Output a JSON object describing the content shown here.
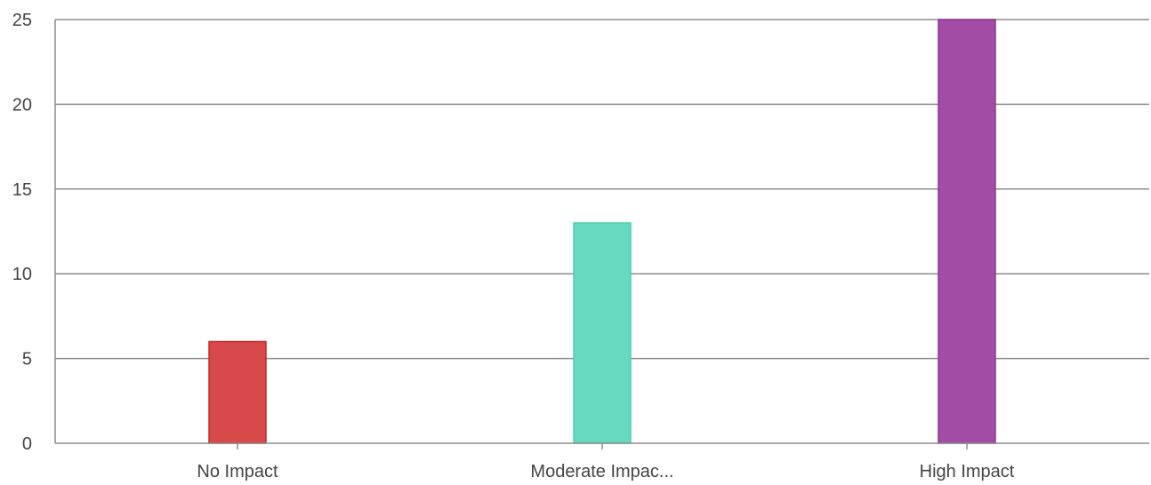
{
  "chart_data": {
    "type": "bar",
    "categories": [
      "No Impact",
      "Moderate Impac...",
      "High Impact"
    ],
    "values": [
      6,
      13,
      25
    ],
    "colors": [
      "#d84a4a",
      "#66d9c0",
      "#a24ca6"
    ],
    "border_colors": [
      "#c62a2a",
      "#4fcdb0",
      "#8e3594"
    ],
    "ylim": [
      0,
      25
    ],
    "yticks": [
      0,
      5,
      10,
      15,
      20,
      25
    ],
    "ytick_labels": [
      "0",
      "5",
      "10",
      "15",
      "20",
      "25"
    ],
    "grid": true,
    "title": "",
    "xlabel": "",
    "ylabel": ""
  }
}
